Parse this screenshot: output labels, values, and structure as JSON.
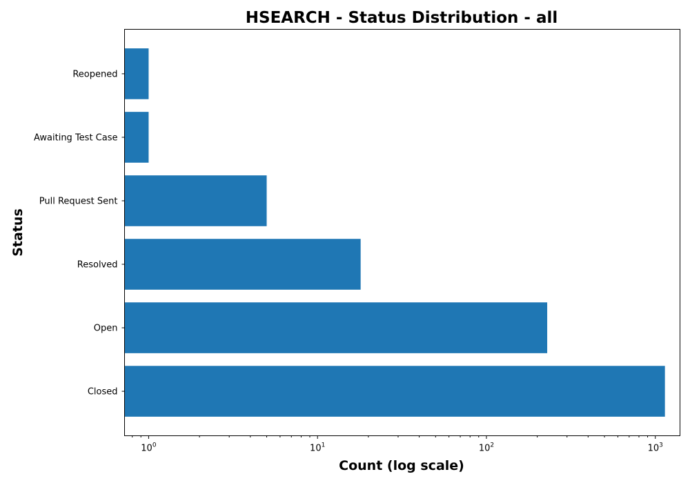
{
  "chart_data": {
    "type": "bar",
    "orientation": "horizontal",
    "title": "HSEARCH - Status Distribution - all",
    "xlabel": "Count (log scale)",
    "ylabel": "Status",
    "x_scale": "log",
    "xlim": [
      0.72,
      1400
    ],
    "x_ticks": [
      {
        "value": 1,
        "base": "10",
        "exp": "0"
      },
      {
        "value": 10,
        "base": "10",
        "exp": "1"
      },
      {
        "value": 100,
        "base": "10",
        "exp": "2"
      },
      {
        "value": 1000,
        "base": "10",
        "exp": "3"
      }
    ],
    "categories": [
      "Closed",
      "Open",
      "Resolved",
      "Pull Request Sent",
      "Awaiting Test Case",
      "Reopened"
    ],
    "values": [
      1140,
      229,
      18,
      5,
      1,
      1
    ],
    "bar_color": "#1f77b4",
    "grid": false,
    "legend": "none"
  }
}
